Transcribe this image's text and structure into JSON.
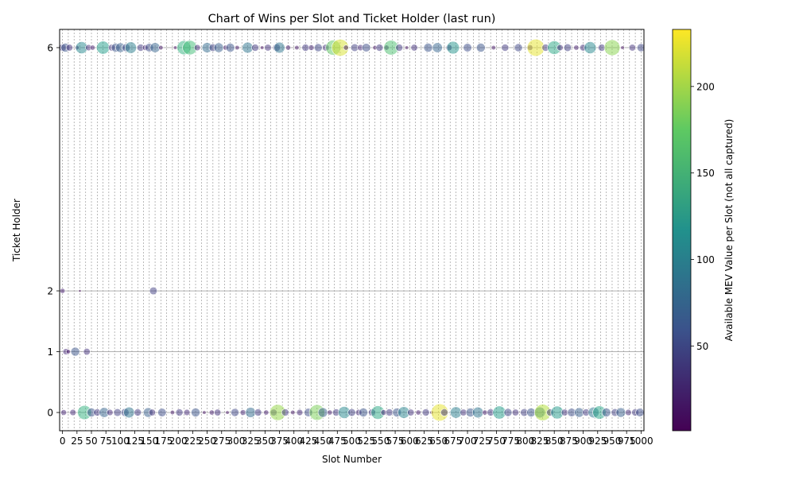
{
  "chart_data": {
    "type": "scatter",
    "title": "Chart of Wins per Slot and Ticket Holder (last run)",
    "xlabel": "Slot Number",
    "ylabel": "Ticket Holder",
    "colorbar_label": "Available MEV Value per Slot (not all captured)",
    "x_ticks": [
      0,
      25,
      50,
      75,
      100,
      125,
      150,
      175,
      200,
      225,
      250,
      275,
      300,
      325,
      350,
      375,
      400,
      425,
      450,
      475,
      500,
      525,
      550,
      575,
      600,
      625,
      650,
      675,
      700,
      725,
      750,
      775,
      800,
      825,
      850,
      875,
      900,
      925,
      950,
      975,
      1000
    ],
    "x_tick_labels": [
      "0",
      "25",
      "50",
      "75",
      "100",
      "125",
      "150",
      "175",
      "200",
      "225",
      "250",
      "275",
      "300",
      "325",
      "350",
      "375",
      "400",
      "425",
      "450",
      "475",
      "500",
      "525",
      "550",
      "575",
      "600",
      "625",
      "650",
      "675",
      "700",
      "725",
      "750",
      "775",
      "800",
      "825",
      "850",
      "875",
      "900",
      "925",
      "950",
      "975",
      "1000"
    ],
    "xlim": [
      -5,
      1005
    ],
    "y_ticks": [
      0,
      1,
      2,
      6
    ],
    "y_tick_labels": [
      "0",
      "1",
      "2",
      "6"
    ],
    "ylim": [
      -0.3,
      6.3
    ],
    "colorbar_ticks": [
      50,
      100,
      150,
      200
    ],
    "colorbar_range": [
      1,
      233
    ],
    "colormap": "viridis",
    "marker_alpha": 0.5,
    "grid": "horizontal lines at y ticks; dashed vertical lines every 10 slots",
    "legend": "none",
    "points": [
      {
        "x": 0,
        "y": 6,
        "v": 40
      },
      {
        "x": 5,
        "y": 6,
        "v": 60
      },
      {
        "x": 12,
        "y": 6,
        "v": 35
      },
      {
        "x": 25,
        "y": 6,
        "v": 15
      },
      {
        "x": 33,
        "y": 6,
        "v": 110
      },
      {
        "x": 45,
        "y": 6,
        "v": 30
      },
      {
        "x": 52,
        "y": 6,
        "v": 20
      },
      {
        "x": 70,
        "y": 6,
        "v": 130
      },
      {
        "x": 85,
        "y": 6,
        "v": 35
      },
      {
        "x": 92,
        "y": 6,
        "v": 60
      },
      {
        "x": 100,
        "y": 6,
        "v": 70
      },
      {
        "x": 110,
        "y": 6,
        "v": 50
      },
      {
        "x": 118,
        "y": 6,
        "v": 100
      },
      {
        "x": 135,
        "y": 6,
        "v": 40
      },
      {
        "x": 143,
        "y": 6,
        "v": 25
      },
      {
        "x": 150,
        "y": 6,
        "v": 55
      },
      {
        "x": 160,
        "y": 6,
        "v": 75
      },
      {
        "x": 170,
        "y": 6,
        "v": 15
      },
      {
        "x": 195,
        "y": 6,
        "v": 10
      },
      {
        "x": 210,
        "y": 6,
        "v": 150
      },
      {
        "x": 220,
        "y": 6,
        "v": 160
      },
      {
        "x": 233,
        "y": 6,
        "v": 30
      },
      {
        "x": 250,
        "y": 6,
        "v": 80
      },
      {
        "x": 260,
        "y": 6,
        "v": 45
      },
      {
        "x": 270,
        "y": 6,
        "v": 70
      },
      {
        "x": 282,
        "y": 6,
        "v": 20
      },
      {
        "x": 290,
        "y": 6,
        "v": 60
      },
      {
        "x": 302,
        "y": 6,
        "v": 15
      },
      {
        "x": 320,
        "y": 6,
        "v": 90
      },
      {
        "x": 333,
        "y": 6,
        "v": 40
      },
      {
        "x": 345,
        "y": 6,
        "v": 10
      },
      {
        "x": 355,
        "y": 6,
        "v": 35
      },
      {
        "x": 370,
        "y": 6,
        "v": 45
      },
      {
        "x": 375,
        "y": 6,
        "v": 90
      },
      {
        "x": 390,
        "y": 6,
        "v": 20
      },
      {
        "x": 405,
        "y": 6,
        "v": 15
      },
      {
        "x": 420,
        "y": 6,
        "v": 40
      },
      {
        "x": 430,
        "y": 6,
        "v": 25
      },
      {
        "x": 442,
        "y": 6,
        "v": 50
      },
      {
        "x": 455,
        "y": 6,
        "v": 35
      },
      {
        "x": 468,
        "y": 6,
        "v": 175
      },
      {
        "x": 480,
        "y": 6,
        "v": 220
      },
      {
        "x": 490,
        "y": 6,
        "v": 20
      },
      {
        "x": 505,
        "y": 6,
        "v": 45
      },
      {
        "x": 515,
        "y": 6,
        "v": 30
      },
      {
        "x": 525,
        "y": 6,
        "v": 55
      },
      {
        "x": 540,
        "y": 6,
        "v": 15
      },
      {
        "x": 548,
        "y": 6,
        "v": 40
      },
      {
        "x": 560,
        "y": 6,
        "v": 20
      },
      {
        "x": 568,
        "y": 6,
        "v": 165
      },
      {
        "x": 582,
        "y": 6,
        "v": 40
      },
      {
        "x": 595,
        "y": 6,
        "v": 10
      },
      {
        "x": 608,
        "y": 6,
        "v": 35
      },
      {
        "x": 632,
        "y": 6,
        "v": 60
      },
      {
        "x": 648,
        "y": 6,
        "v": 75
      },
      {
        "x": 668,
        "y": 6,
        "v": 30
      },
      {
        "x": 675,
        "y": 6,
        "v": 120
      },
      {
        "x": 700,
        "y": 6,
        "v": 55
      },
      {
        "x": 723,
        "y": 6,
        "v": 60
      },
      {
        "x": 745,
        "y": 6,
        "v": 15
      },
      {
        "x": 765,
        "y": 6,
        "v": 40
      },
      {
        "x": 788,
        "y": 6,
        "v": 50
      },
      {
        "x": 808,
        "y": 6,
        "v": 25
      },
      {
        "x": 818,
        "y": 6,
        "v": 225
      },
      {
        "x": 835,
        "y": 6,
        "v": 40
      },
      {
        "x": 850,
        "y": 6,
        "v": 140
      },
      {
        "x": 860,
        "y": 6,
        "v": 30
      },
      {
        "x": 873,
        "y": 6,
        "v": 45
      },
      {
        "x": 888,
        "y": 6,
        "v": 20
      },
      {
        "x": 900,
        "y": 6,
        "v": 35
      },
      {
        "x": 912,
        "y": 6,
        "v": 110
      },
      {
        "x": 932,
        "y": 6,
        "v": 40
      },
      {
        "x": 950,
        "y": 6,
        "v": 190
      },
      {
        "x": 968,
        "y": 6,
        "v": 10
      },
      {
        "x": 985,
        "y": 6,
        "v": 35
      },
      {
        "x": 1000,
        "y": 6,
        "v": 50
      },
      {
        "x": 0,
        "y": 2,
        "v": 20
      },
      {
        "x": 30,
        "y": 2,
        "v": 5
      },
      {
        "x": 157,
        "y": 2,
        "v": 45
      },
      {
        "x": 6,
        "y": 1,
        "v": 30
      },
      {
        "x": 10,
        "y": 1,
        "v": 15
      },
      {
        "x": 22,
        "y": 1,
        "v": 60
      },
      {
        "x": 42,
        "y": 1,
        "v": 35
      },
      {
        "x": 2,
        "y": 0,
        "v": 25
      },
      {
        "x": 18,
        "y": 0,
        "v": 30
      },
      {
        "x": 38,
        "y": 0,
        "v": 150
      },
      {
        "x": 50,
        "y": 0,
        "v": 60
      },
      {
        "x": 60,
        "y": 0,
        "v": 40
      },
      {
        "x": 72,
        "y": 0,
        "v": 75
      },
      {
        "x": 82,
        "y": 0,
        "v": 30
      },
      {
        "x": 95,
        "y": 0,
        "v": 45
      },
      {
        "x": 108,
        "y": 0,
        "v": 50
      },
      {
        "x": 115,
        "y": 0,
        "v": 90
      },
      {
        "x": 130,
        "y": 0,
        "v": 40
      },
      {
        "x": 148,
        "y": 0,
        "v": 70
      },
      {
        "x": 155,
        "y": 0,
        "v": 35
      },
      {
        "x": 172,
        "y": 0,
        "v": 55
      },
      {
        "x": 190,
        "y": 0,
        "v": 15
      },
      {
        "x": 202,
        "y": 0,
        "v": 40
      },
      {
        "x": 215,
        "y": 0,
        "v": 30
      },
      {
        "x": 230,
        "y": 0,
        "v": 60
      },
      {
        "x": 245,
        "y": 0,
        "v": 10
      },
      {
        "x": 258,
        "y": 0,
        "v": 20
      },
      {
        "x": 268,
        "y": 0,
        "v": 35
      },
      {
        "x": 285,
        "y": 0,
        "v": 10
      },
      {
        "x": 298,
        "y": 0,
        "v": 50
      },
      {
        "x": 312,
        "y": 0,
        "v": 25
      },
      {
        "x": 325,
        "y": 0,
        "v": 80
      },
      {
        "x": 338,
        "y": 0,
        "v": 40
      },
      {
        "x": 352,
        "y": 0,
        "v": 20
      },
      {
        "x": 365,
        "y": 0,
        "v": 35
      },
      {
        "x": 372,
        "y": 0,
        "v": 195
      },
      {
        "x": 385,
        "y": 0,
        "v": 40
      },
      {
        "x": 398,
        "y": 0,
        "v": 15
      },
      {
        "x": 410,
        "y": 0,
        "v": 30
      },
      {
        "x": 425,
        "y": 0,
        "v": 55
      },
      {
        "x": 440,
        "y": 0,
        "v": 185
      },
      {
        "x": 450,
        "y": 0,
        "v": 70
      },
      {
        "x": 462,
        "y": 0,
        "v": 20
      },
      {
        "x": 473,
        "y": 0,
        "v": 40
      },
      {
        "x": 487,
        "y": 0,
        "v": 110
      },
      {
        "x": 500,
        "y": 0,
        "v": 45
      },
      {
        "x": 512,
        "y": 0,
        "v": 30
      },
      {
        "x": 520,
        "y": 0,
        "v": 60
      },
      {
        "x": 535,
        "y": 0,
        "v": 40
      },
      {
        "x": 545,
        "y": 0,
        "v": 140
      },
      {
        "x": 555,
        "y": 0,
        "v": 25
      },
      {
        "x": 565,
        "y": 0,
        "v": 40
      },
      {
        "x": 578,
        "y": 0,
        "v": 60
      },
      {
        "x": 590,
        "y": 0,
        "v": 105
      },
      {
        "x": 602,
        "y": 0,
        "v": 35
      },
      {
        "x": 615,
        "y": 0,
        "v": 20
      },
      {
        "x": 628,
        "y": 0,
        "v": 40
      },
      {
        "x": 638,
        "y": 0,
        "v": 10
      },
      {
        "x": 652,
        "y": 0,
        "v": 225
      },
      {
        "x": 660,
        "y": 0,
        "v": 40
      },
      {
        "x": 680,
        "y": 0,
        "v": 100
      },
      {
        "x": 693,
        "y": 0,
        "v": 35
      },
      {
        "x": 705,
        "y": 0,
        "v": 60
      },
      {
        "x": 718,
        "y": 0,
        "v": 90
      },
      {
        "x": 730,
        "y": 0,
        "v": 20
      },
      {
        "x": 740,
        "y": 0,
        "v": 40
      },
      {
        "x": 755,
        "y": 0,
        "v": 130
      },
      {
        "x": 770,
        "y": 0,
        "v": 50
      },
      {
        "x": 783,
        "y": 0,
        "v": 35
      },
      {
        "x": 798,
        "y": 0,
        "v": 45
      },
      {
        "x": 810,
        "y": 0,
        "v": 60
      },
      {
        "x": 825,
        "y": 0,
        "v": 90
      },
      {
        "x": 830,
        "y": 0,
        "v": 205
      },
      {
        "x": 843,
        "y": 0,
        "v": 40
      },
      {
        "x": 855,
        "y": 0,
        "v": 125
      },
      {
        "x": 868,
        "y": 0,
        "v": 35
      },
      {
        "x": 880,
        "y": 0,
        "v": 55
      },
      {
        "x": 893,
        "y": 0,
        "v": 70
      },
      {
        "x": 905,
        "y": 0,
        "v": 40
      },
      {
        "x": 918,
        "y": 0,
        "v": 90
      },
      {
        "x": 928,
        "y": 0,
        "v": 135
      },
      {
        "x": 940,
        "y": 0,
        "v": 60
      },
      {
        "x": 955,
        "y": 0,
        "v": 45
      },
      {
        "x": 965,
        "y": 0,
        "v": 70
      },
      {
        "x": 978,
        "y": 0,
        "v": 30
      },
      {
        "x": 990,
        "y": 0,
        "v": 40
      },
      {
        "x": 998,
        "y": 0,
        "v": 55
      }
    ]
  }
}
